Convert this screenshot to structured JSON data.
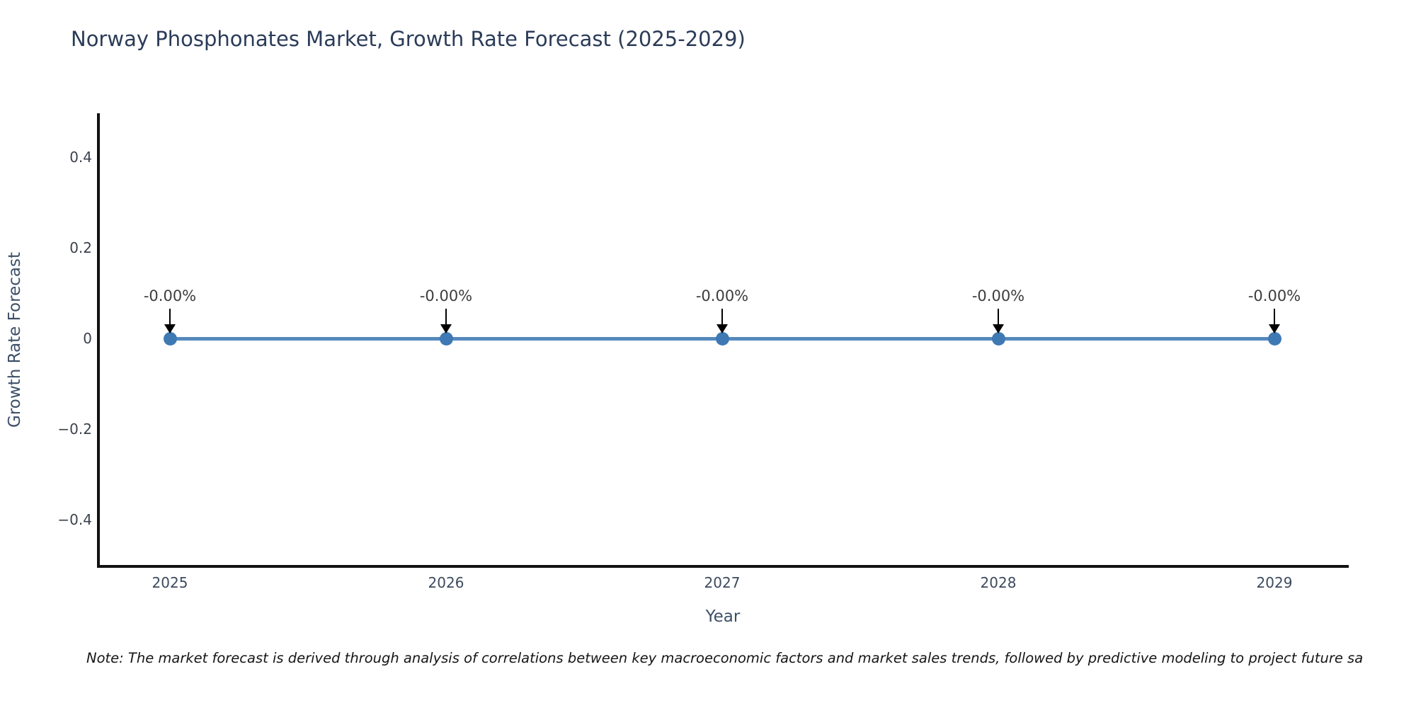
{
  "chart_data": {
    "type": "line",
    "title": "Norway Phosphonates Market, Growth Rate Forecast (2025-2029)",
    "xlabel": "Year",
    "ylabel": "Growth Rate Forecast",
    "x": [
      2025,
      2026,
      2027,
      2028,
      2029
    ],
    "series": [
      {
        "name": "Growth Rate Forecast",
        "values": [
          0,
          0,
          0,
          0,
          0
        ]
      }
    ],
    "point_labels": [
      "-0.00%",
      "-0.00%",
      "-0.00%",
      "-0.00%",
      "-0.00%"
    ],
    "xtick_labels": [
      "2025",
      "2026",
      "2027",
      "2028",
      "2029"
    ],
    "ytick_values": [
      0.4,
      0.2,
      0,
      -0.2,
      -0.4
    ],
    "ytick_labels": [
      "0.4",
      "0.2",
      "0",
      "−0.2",
      "−0.4"
    ],
    "ylim": [
      -0.5,
      0.5
    ],
    "grid": false,
    "legend_position": "none",
    "line_color": "#5589bd",
    "marker_color": "#3e79b4",
    "arrow_color": "#000000",
    "axis_line_color": "#111111",
    "title_color": "#2b3c58"
  },
  "note": {
    "text": "Note: The market forecast is derived through analysis of correlations between key macroeconomic factors and market sales trends, followed by predictive modeling to project future sa"
  }
}
